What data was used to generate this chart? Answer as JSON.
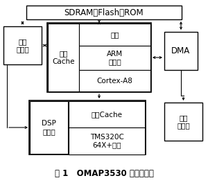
{
  "title": "图 1   OMAP3530 的硬件结构",
  "bg": "#ffffff",
  "sdram_label": "SDRAM，Flash，ROM",
  "flow_label": "流量\n控制器",
  "zhi_cache_label": "指令\nCache",
  "shu_ju_label": "数据",
  "arm_label": "ARM\n子系统",
  "cortex_label": "Cortex-A8",
  "dma_label": "DMA",
  "dsp_label": "DSP\n子系统",
  "zhi_cache2_label": "指令Cache",
  "tms_label": "TMS320C\n64X+内核",
  "lcd_label": "液晶\n控制器"
}
